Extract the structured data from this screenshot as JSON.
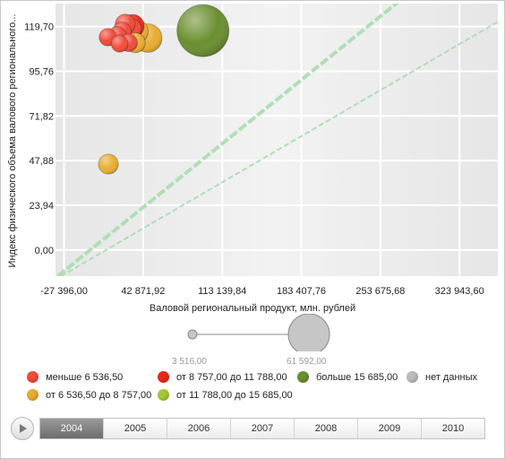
{
  "chart_data": {
    "type": "bubble",
    "xlabel": "Валовой региональный продукт, млн. рублей",
    "ylabel": "Индекс физического объема валового регионального...",
    "x_ticks": [
      "-27 396,00",
      "42 871,92",
      "113 139,84",
      "183 407,76",
      "253 675,68",
      "323 943,60"
    ],
    "x_tick_values": [
      -27396,
      42871.92,
      113139.84,
      183407.76,
      253675.68,
      323943.6
    ],
    "y_ticks": [
      "0,00",
      "23,94",
      "47,88",
      "71,82",
      "95,76",
      "119,70"
    ],
    "y_tick_values": [
      0,
      23.94,
      47.88,
      71.82,
      95.76,
      119.7
    ],
    "xlim": [
      -35000,
      358000
    ],
    "ylim": [
      -14,
      132
    ],
    "grid": true,
    "size_range": [
      3516,
      61592
    ],
    "size_labels": [
      "3 516,00",
      "61 592,00"
    ],
    "bubbles": [
      {
        "x": 96000,
        "y": 117.5,
        "size": 61592,
        "color": "#6b8e2f"
      },
      {
        "x": 47000,
        "y": 113.5,
        "size": 18500,
        "color": "#e8ad30"
      },
      {
        "x": 36500,
        "y": 117.0,
        "size": 13800,
        "color": "#e8ad30"
      },
      {
        "x": 33500,
        "y": 120.0,
        "size": 12200,
        "color": "#e82a1c"
      },
      {
        "x": 32000,
        "y": 118.5,
        "size": 9800,
        "color": "#f14b3a"
      },
      {
        "x": 27000,
        "y": 121.0,
        "size": 9200,
        "color": "#f14b3a"
      },
      {
        "x": 24000,
        "y": 117.0,
        "size": 8000,
        "color": "#f14b3a"
      },
      {
        "x": 20000,
        "y": 115.0,
        "size": 7000,
        "color": "#f14b3a"
      },
      {
        "x": 11500,
        "y": 114.0,
        "size": 7000,
        "color": "#f14b3a"
      },
      {
        "x": 30000,
        "y": 111.0,
        "size": 7000,
        "color": "#f14b3a"
      },
      {
        "x": 22000,
        "y": 110.5,
        "size": 6500,
        "color": "#f14b3a"
      },
      {
        "x": 36000,
        "y": 111.0,
        "size": 9000,
        "color": "#e8ad30"
      },
      {
        "x": 12000,
        "y": 46.0,
        "size": 9000,
        "color": "#e8ad30"
      }
    ],
    "trend_lines": [
      {
        "x1": -33000,
        "y1": -14,
        "x2": 280000,
        "y2": 138
      },
      {
        "x1": -30000,
        "y1": -14,
        "x2": 380000,
        "y2": 130
      }
    ]
  },
  "color_legend": [
    {
      "label": "меньше 6 536,50",
      "color": "#f14b3a"
    },
    {
      "label": "от 8 757,00 до 11 788,00",
      "color": "#e82a1c"
    },
    {
      "label": "больше 15 685,00",
      "color": "#6b8e2f"
    },
    {
      "label": "нет данных",
      "color": "#bdbdbd"
    },
    {
      "label": "от 6 536,50 до 8 757,00",
      "color": "#e8ad30"
    },
    {
      "label": "от 11 788,00 до 15 685,00",
      "color": "#a6c83b"
    }
  ],
  "timeline": {
    "years": [
      "2004",
      "2005",
      "2006",
      "2007",
      "2008",
      "2009",
      "2010"
    ],
    "selected": "2004"
  }
}
